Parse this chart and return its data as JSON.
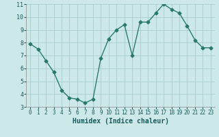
{
  "x": [
    0,
    1,
    2,
    3,
    4,
    5,
    6,
    7,
    8,
    9,
    10,
    11,
    12,
    13,
    14,
    15,
    16,
    17,
    18,
    19,
    20,
    21,
    22,
    23
  ],
  "y": [
    7.9,
    7.5,
    6.6,
    5.7,
    4.3,
    3.7,
    3.6,
    3.3,
    3.6,
    6.8,
    8.3,
    9.0,
    9.4,
    7.0,
    9.6,
    9.6,
    10.3,
    11.0,
    10.6,
    10.3,
    9.3,
    8.2,
    7.6,
    7.6
  ],
  "xlabel": "Humidex (Indice chaleur)",
  "line_color": "#2a7a6b",
  "bg_color": "#cce8e8",
  "grid_color": "#aacccc",
  "ylim": [
    3,
    11
  ],
  "xlim": [
    -0.5,
    23.5
  ],
  "yticks": [
    3,
    4,
    5,
    6,
    7,
    8,
    9,
    10,
    11
  ],
  "xticks": [
    0,
    1,
    2,
    3,
    4,
    5,
    6,
    7,
    8,
    9,
    10,
    11,
    12,
    13,
    14,
    15,
    16,
    17,
    18,
    19,
    20,
    21,
    22,
    23
  ],
  "marker": "D",
  "markersize": 2.5,
  "linewidth": 1.0
}
